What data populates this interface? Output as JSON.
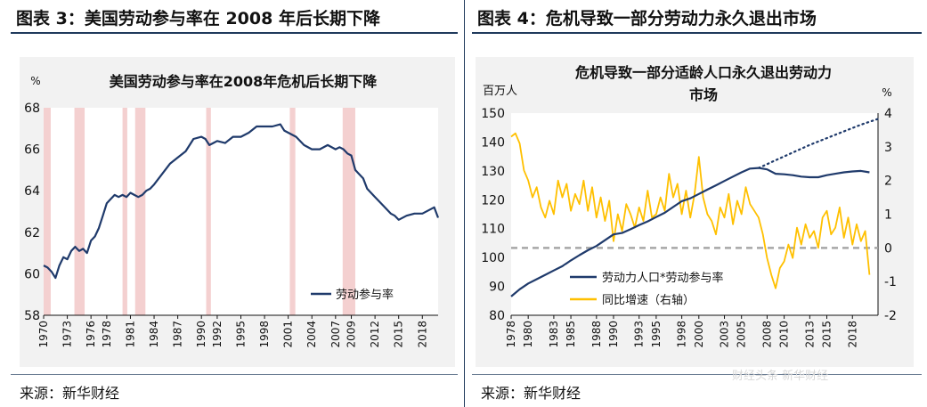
{
  "panels": {
    "left": {
      "header": "图表 3：美国劳动参与率在 2008 年后长期下降",
      "source": "来源：新华财经"
    },
    "right": {
      "header": "图表 4：危机导致一部分劳动力永久退出市场",
      "source": "来源：新华财经"
    }
  },
  "watermark": "财经头条 新华财经",
  "colors": {
    "navy": "#1f3a6b",
    "gold": "#ffc000",
    "recession": "#f4d0d0",
    "plot_bg": "#f2f2f2",
    "dashed": "#a6a6a6"
  },
  "chart_data": [
    {
      "type": "line",
      "title": "美国劳动参与率在2008年危机后长期下降",
      "ylabel": "%",
      "ylim": [
        58,
        68
      ],
      "yticks": [
        58,
        60,
        62,
        64,
        66,
        68
      ],
      "xlim": [
        1970,
        2020
      ],
      "xticks": [
        1970,
        1973,
        1976,
        1978,
        1981,
        1984,
        1987,
        1990,
        1992,
        1995,
        1998,
        2001,
        2004,
        2007,
        2009,
        2012,
        2015,
        2018
      ],
      "recessions": [
        [
          1970,
          1970.9
        ],
        [
          1973.9,
          1975.2
        ],
        [
          1980.0,
          1980.6
        ],
        [
          1981.6,
          1982.9
        ],
        [
          1990.6,
          1991.2
        ],
        [
          2001.2,
          2001.9
        ],
        [
          2007.9,
          2009.5
        ]
      ],
      "legend": "劳动参与率",
      "series": [
        {
          "name": "劳动参与率",
          "x": [
            1970,
            1970.5,
            1971,
            1971.5,
            1972,
            1972.5,
            1973,
            1973.5,
            1974,
            1974.5,
            1975,
            1975.5,
            1976,
            1976.5,
            1977,
            1977.5,
            1978,
            1978.5,
            1979,
            1979.5,
            1980,
            1980.5,
            1981,
            1981.5,
            1982,
            1982.5,
            1983,
            1983.5,
            1984,
            1985,
            1986,
            1987,
            1988,
            1989,
            1990,
            1990.5,
            1991,
            1991.5,
            1992,
            1993,
            1994,
            1995,
            1996,
            1997,
            1998,
            1999,
            2000,
            2000.5,
            2001,
            2002,
            2003,
            2004,
            2005,
            2006,
            2007,
            2007.5,
            2008,
            2008.5,
            2009,
            2009.5,
            2010,
            2010.5,
            2011,
            2012,
            2013,
            2014,
            2014.5,
            2015,
            2016,
            2017,
            2018,
            2019,
            2019.5,
            2020
          ],
          "values": [
            60.4,
            60.3,
            60.1,
            59.8,
            60.4,
            60.8,
            60.7,
            61.1,
            61.3,
            61.1,
            61.2,
            61.0,
            61.6,
            61.8,
            62.2,
            62.8,
            63.4,
            63.6,
            63.8,
            63.7,
            63.8,
            63.7,
            63.9,
            63.8,
            63.7,
            63.8,
            64.0,
            64.1,
            64.3,
            64.8,
            65.3,
            65.6,
            65.9,
            66.5,
            66.6,
            66.5,
            66.2,
            66.3,
            66.4,
            66.3,
            66.6,
            66.6,
            66.8,
            67.1,
            67.1,
            67.1,
            67.2,
            66.9,
            66.8,
            66.6,
            66.2,
            66.0,
            66.0,
            66.2,
            66.0,
            66.1,
            66.0,
            65.8,
            65.7,
            65.0,
            64.8,
            64.6,
            64.1,
            63.7,
            63.3,
            62.9,
            62.8,
            62.6,
            62.8,
            62.9,
            62.9,
            63.1,
            63.2,
            62.7
          ]
        }
      ]
    },
    {
      "type": "line",
      "title": "危机导致一部分适龄人口永久退出劳动力市场",
      "title_lines": [
        "危机导致一部分适龄人口永久退出劳动力",
        "市场"
      ],
      "ylabel_left": "百万人",
      "ylabel_right": "%",
      "ylim_left": [
        80,
        150
      ],
      "yticks_left": [
        80,
        90,
        100,
        110,
        120,
        130,
        140,
        150
      ],
      "ylim_right": [
        -2,
        4
      ],
      "yticks_right": [
        -2,
        -1,
        0,
        1,
        2,
        3,
        4
      ],
      "xlim": [
        1978,
        2021
      ],
      "xticks": [
        1978,
        1980,
        1983,
        1985,
        1988,
        1990,
        1993,
        1995,
        1998,
        2000,
        2003,
        2005,
        2008,
        2010,
        2013,
        2015,
        2018
      ],
      "legend": [
        "劳动力人口*劳动参与率",
        "同比增速（右轴）"
      ],
      "series": [
        {
          "name": "劳动力人口*劳动参与率",
          "axis": "left",
          "x": [
            1978,
            1979,
            1980,
            1981,
            1982,
            1983,
            1984,
            1985,
            1986,
            1987,
            1988,
            1989,
            1990,
            1991,
            1992,
            1993,
            1994,
            1995,
            1996,
            1997,
            1998,
            1999,
            2000,
            2001,
            2002,
            2003,
            2004,
            2005,
            2006,
            2007,
            2008,
            2009,
            2010,
            2011,
            2012,
            2013,
            2014,
            2015,
            2016,
            2017,
            2018,
            2019,
            2020
          ],
          "values": [
            86.5,
            89.0,
            91.0,
            92.5,
            94.0,
            95.5,
            97.0,
            99.0,
            100.8,
            102.5,
            104.0,
            106.0,
            108.0,
            108.5,
            109.8,
            111.2,
            112.5,
            114.0,
            115.5,
            117.5,
            119.5,
            120.5,
            122.0,
            123.5,
            125.0,
            126.5,
            128.0,
            129.5,
            130.8,
            131.0,
            130.5,
            129.0,
            128.8,
            128.5,
            128.0,
            127.8,
            127.8,
            128.5,
            129.0,
            129.5,
            129.8,
            130.0,
            129.5
          ]
        },
        {
          "name": "趋势延长线",
          "axis": "left",
          "style": "dotted",
          "x": [
            2007,
            2010,
            2013,
            2016,
            2019,
            2021
          ],
          "values": [
            131.0,
            135.0,
            139.0,
            142.5,
            146.0,
            148.0
          ]
        },
        {
          "name": "同比增速（右轴）",
          "axis": "right",
          "x": [
            1978,
            1978.5,
            1979,
            1979.5,
            1980,
            1980.5,
            1981,
            1981.5,
            1982,
            1982.5,
            1983,
            1983.5,
            1984,
            1984.5,
            1985,
            1985.5,
            1986,
            1986.5,
            1987,
            1987.5,
            1988,
            1988.5,
            1989,
            1989.5,
            1990,
            1990.5,
            1991,
            1991.5,
            1992,
            1992.5,
            1993,
            1993.5,
            1994,
            1994.5,
            1995,
            1995.5,
            1996,
            1996.5,
            1997,
            1997.5,
            1998,
            1998.5,
            1999,
            1999.5,
            2000,
            2000.5,
            2001,
            2001.5,
            2002,
            2002.5,
            2003,
            2003.5,
            2004,
            2004.5,
            2005,
            2005.5,
            2006,
            2006.5,
            2007,
            2007.5,
            2008,
            2008.5,
            2009,
            2009.5,
            2010,
            2010.5,
            2011,
            2011.5,
            2012,
            2012.5,
            2013,
            2013.5,
            2014,
            2014.5,
            2015,
            2015.5,
            2016,
            2016.5,
            2017,
            2017.5,
            2018,
            2018.5,
            2019,
            2019.5,
            2020
          ],
          "values": [
            3.3,
            3.4,
            3.1,
            2.3,
            2.0,
            1.5,
            1.8,
            1.2,
            0.9,
            1.4,
            1.0,
            2.0,
            1.5,
            1.9,
            1.1,
            1.6,
            1.3,
            2.0,
            1.1,
            1.8,
            0.9,
            1.5,
            0.8,
            1.4,
            0.2,
            1.0,
            0.5,
            1.3,
            1.0,
            0.6,
            1.2,
            0.8,
            1.7,
            0.9,
            1.0,
            1.5,
            1.1,
            2.2,
            1.5,
            1.9,
            1.0,
            1.7,
            0.9,
            1.6,
            2.7,
            1.5,
            1.0,
            0.8,
            0.4,
            1.2,
            0.9,
            1.6,
            0.7,
            1.4,
            1.0,
            1.8,
            1.3,
            1.1,
            0.9,
            0.4,
            -0.3,
            -0.8,
            -1.2,
            -0.6,
            -0.4,
            0.1,
            -0.3,
            0.6,
            0.1,
            0.7,
            0.3,
            0.5,
            0.0,
            0.9,
            1.1,
            0.4,
            0.6,
            1.2,
            0.3,
            0.9,
            0.1,
            0.7,
            0.2,
            0.5,
            -0.8
          ]
        }
      ]
    }
  ]
}
